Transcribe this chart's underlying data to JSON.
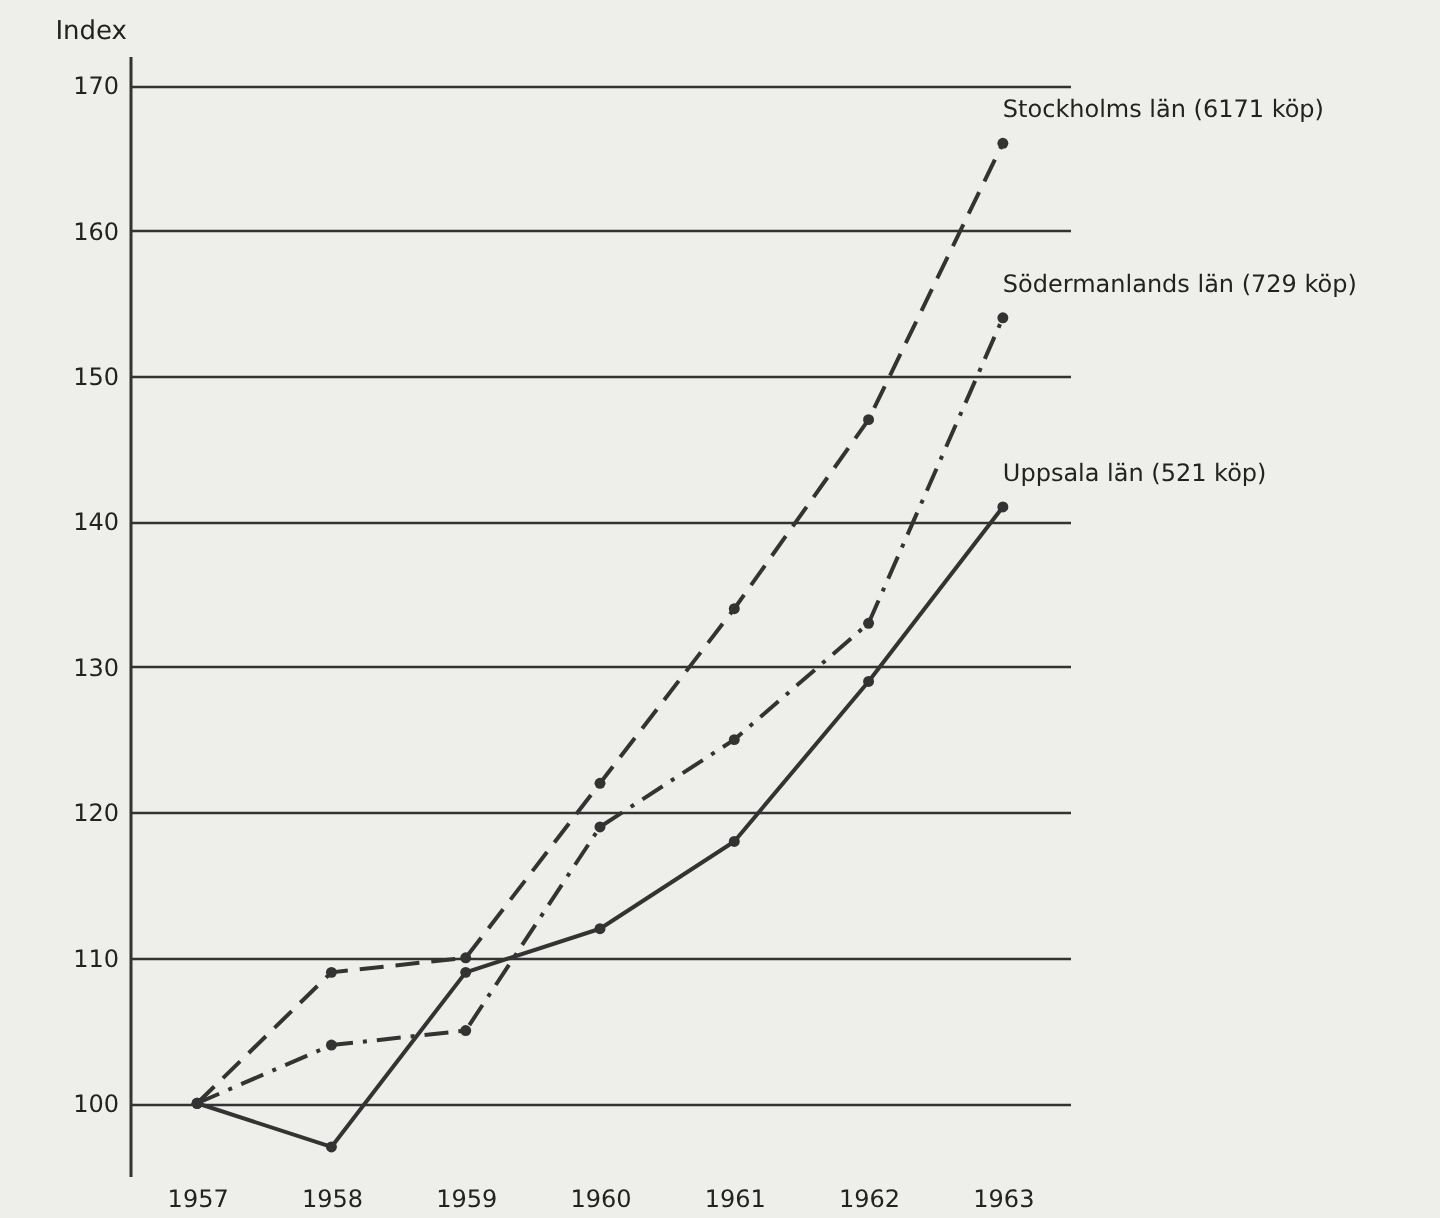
{
  "chart_data": {
    "type": "line",
    "ylabel": "Index",
    "categories": [
      "1957",
      "1958",
      "1959",
      "1960",
      "1961",
      "1962",
      "1963"
    ],
    "series": [
      {
        "name": "Stockholms län (6171 köp)",
        "color": "#333333",
        "line_style": "dashed",
        "values": [
          100,
          109,
          110,
          122,
          134,
          147,
          166
        ]
      },
      {
        "name": "Södermanlands län (729 köp)",
        "color": "#333333",
        "line_style": "dashdot",
        "values": [
          100,
          104,
          105,
          119,
          125,
          133,
          154
        ]
      },
      {
        "name": "Uppsala län (521 köp)",
        "color": "#333333",
        "line_style": "solid",
        "values": [
          100,
          97,
          109,
          112,
          118,
          129,
          141
        ]
      }
    ],
    "ylim": [
      95,
      172
    ],
    "yticks": [
      100,
      110,
      120,
      130,
      140,
      150,
      160,
      170
    ],
    "grid": "y",
    "marker": "circle"
  }
}
